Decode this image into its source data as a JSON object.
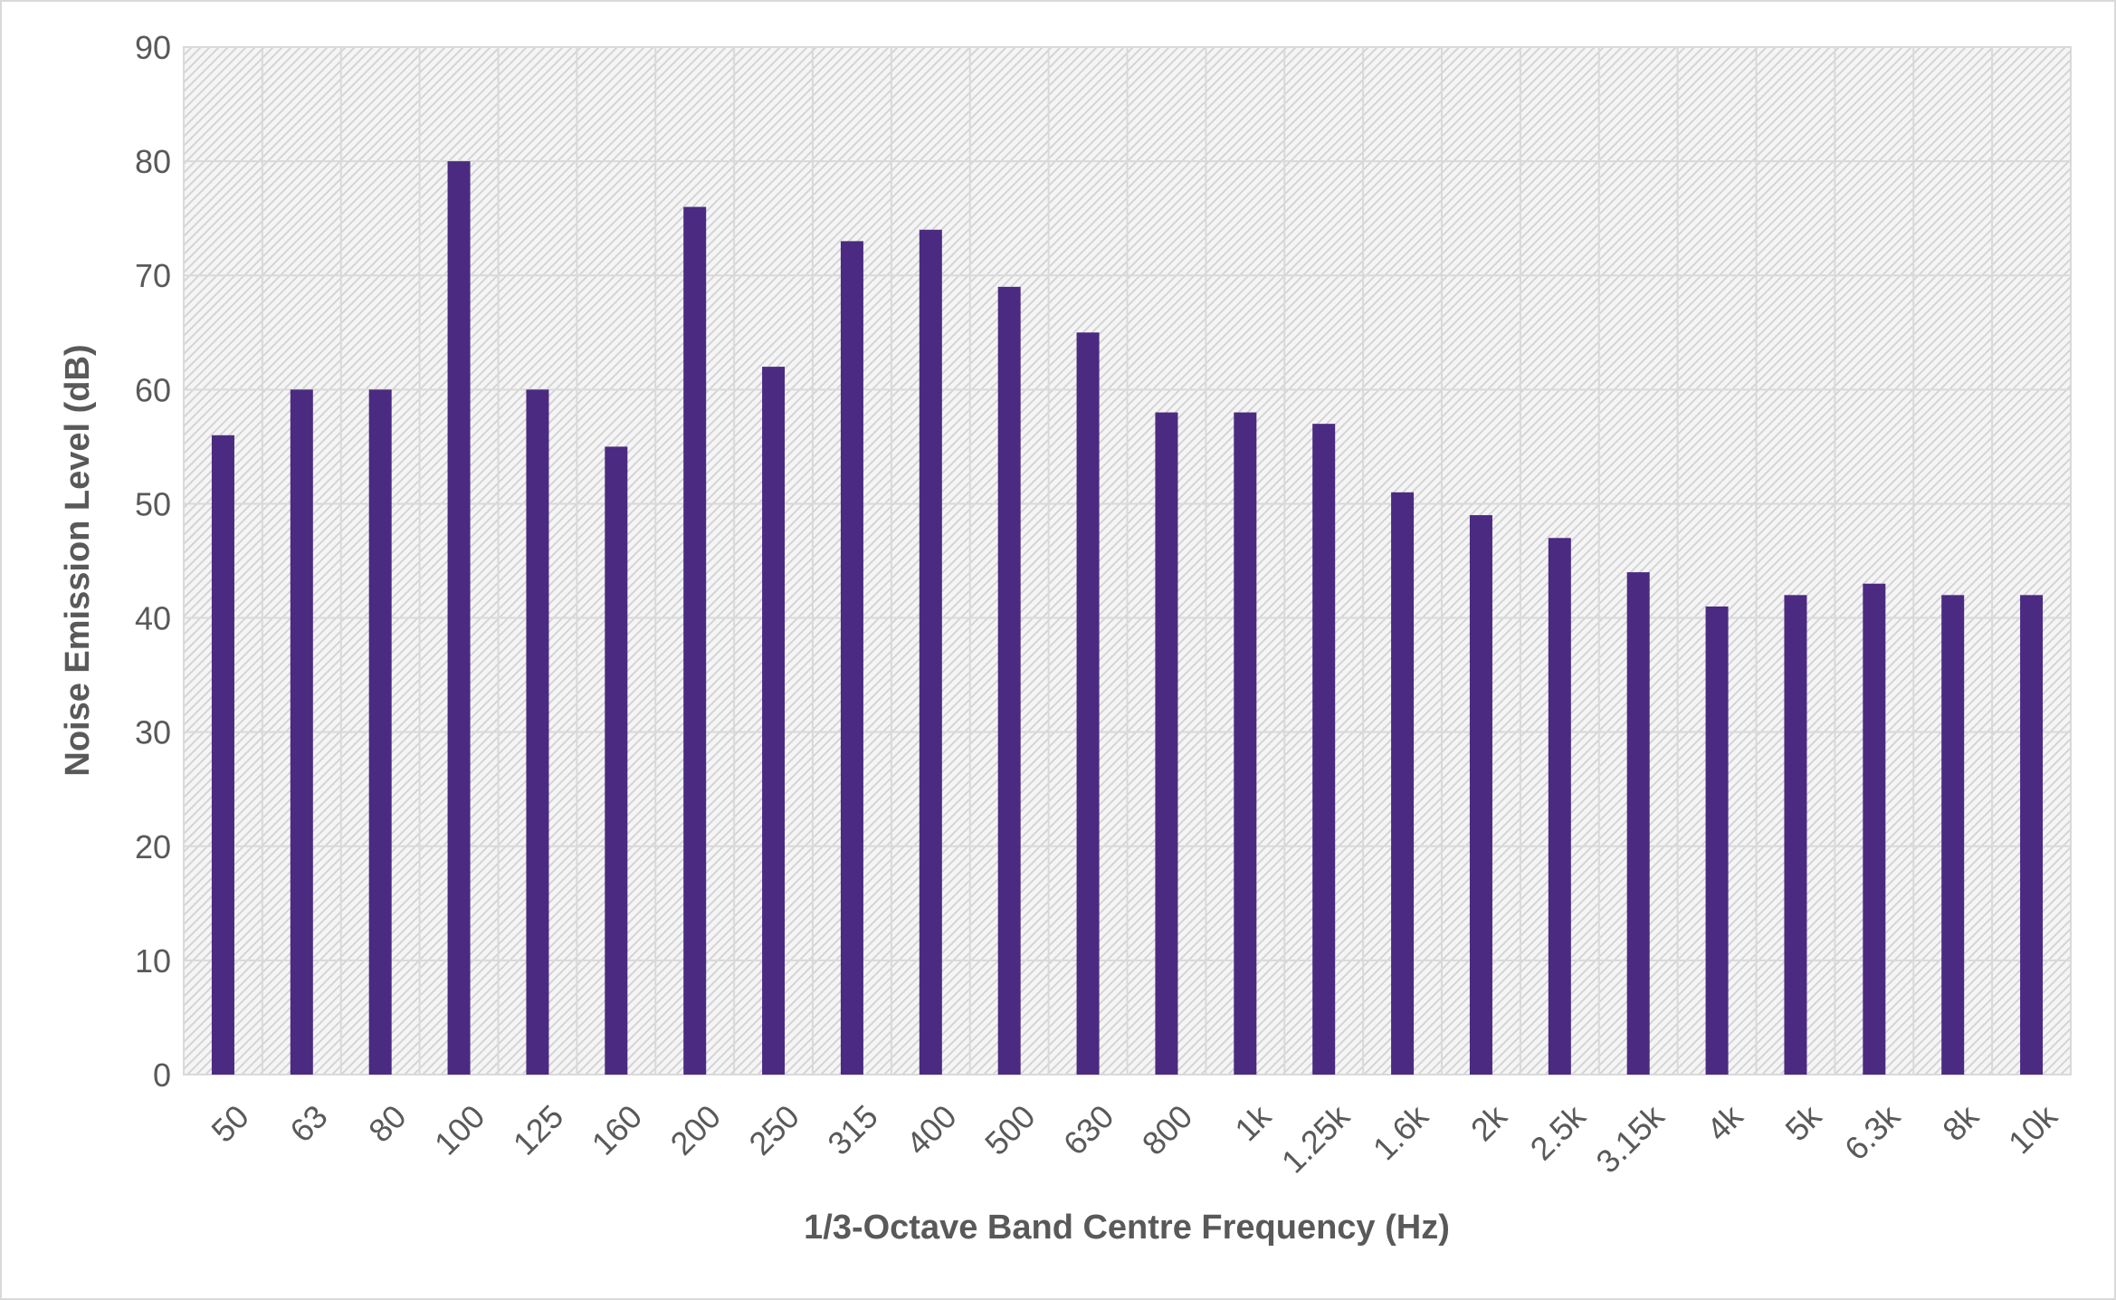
{
  "chart_data": {
    "type": "bar",
    "title": "",
    "xlabel": "1/3-Octave Band Centre Frequency (Hz)",
    "ylabel": "Noise Emission Level (dB)",
    "categories": [
      "50",
      "63",
      "80",
      "100",
      "125",
      "160",
      "200",
      "250",
      "315",
      "400",
      "500",
      "630",
      "800",
      "1k",
      "1.25k",
      "1.6k",
      "2k",
      "2.5k",
      "3.15k",
      "4k",
      "5k",
      "6.3k",
      "8k",
      "10k"
    ],
    "values": [
      56,
      60,
      60,
      80,
      60,
      55,
      76,
      62,
      73,
      74,
      69,
      65,
      58,
      58,
      57,
      51,
      49,
      47,
      44,
      41,
      42,
      43,
      42,
      42
    ],
    "ylim": [
      0,
      90
    ],
    "yticks": [
      0,
      10,
      20,
      30,
      40,
      50,
      60,
      70,
      80,
      90
    ],
    "grid": true,
    "legend": "none",
    "colors": {
      "bar": "#4b2a82",
      "gridline": "#d9d9d9",
      "plot_background": "#f2f2f2",
      "hatch": "#d0d0d0",
      "text": "#595959"
    }
  }
}
